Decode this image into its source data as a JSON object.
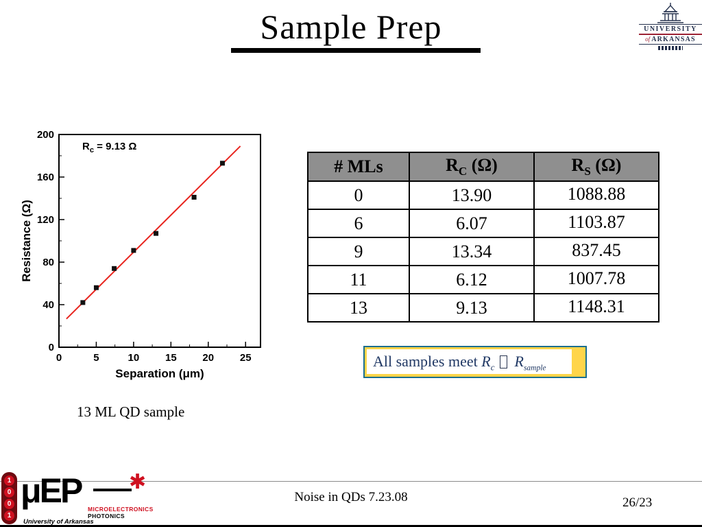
{
  "title": "Sample Prep",
  "caption": "13 ML QD sample",
  "footer": {
    "center_text": "Noise in QDs 7.23.08",
    "page_number": "26/23"
  },
  "university_logo": {
    "line1": "UNIVERSITY",
    "of": "of",
    "line2": "ARKANSAS"
  },
  "dept_logo": {
    "name": "μEP",
    "star": "✱",
    "line1": "MICROELECTRONICS",
    "line2": "PHOTONICS",
    "line3": "University of Arkansas",
    "strip_digits": [
      "1",
      "0",
      "0",
      "1"
    ]
  },
  "table": {
    "header": {
      "col1": "# MLs",
      "col2_base": "R",
      "col2_sub": "C",
      "col2_unit": " (Ω)",
      "col3_base": "R",
      "col3_sub": "S",
      "col3_unit": " (Ω)"
    },
    "rows": [
      [
        "0",
        "13.90",
        "1088.88"
      ],
      [
        "6",
        "6.07",
        "1103.87"
      ],
      [
        "9",
        "13.34",
        "837.45"
      ],
      [
        "11",
        "6.12",
        "1007.78"
      ],
      [
        "13",
        "9.13",
        "1148.31"
      ]
    ]
  },
  "callout": {
    "text_prefix": "All samples meet ",
    "r1_base": "R",
    "r1_sub": "c",
    "r2_base": "R",
    "r2_sub": "sample",
    "border_color": "#1a6e8e",
    "fill_color": "#ffd54a",
    "text_color": "#203864"
  },
  "colors": {
    "table_header_bg": "#8f8f8f",
    "accent_red": "#9d2235",
    "fit_line_red": "#e8251f"
  },
  "chart_data": {
    "type": "scatter",
    "title": "",
    "annotation": {
      "base": "R",
      "sub": "c",
      "rest": " = 9.13 Ω"
    },
    "xlabel": "Separation (μm)",
    "ylabel": "Resistance (Ω)",
    "xlim": [
      0,
      27
    ],
    "ylim": [
      0,
      200
    ],
    "xticks": [
      0,
      5,
      10,
      15,
      20,
      25
    ],
    "yticks": [
      0,
      40,
      80,
      120,
      160,
      200
    ],
    "x_minor_step": 2.5,
    "y_minor_step": 20,
    "grid": false,
    "legend": "none",
    "points": {
      "x": [
        3.2,
        5.0,
        7.4,
        10.0,
        13.0,
        18.1,
        21.9
      ],
      "y": [
        42,
        56,
        74,
        91,
        107,
        141,
        173
      ]
    },
    "fit_line": {
      "slope": 6.97,
      "intercept": 19.7,
      "x_start": 1.0,
      "x_end": 24.3,
      "color": "#e8251f"
    },
    "marker_color": "#111111"
  }
}
